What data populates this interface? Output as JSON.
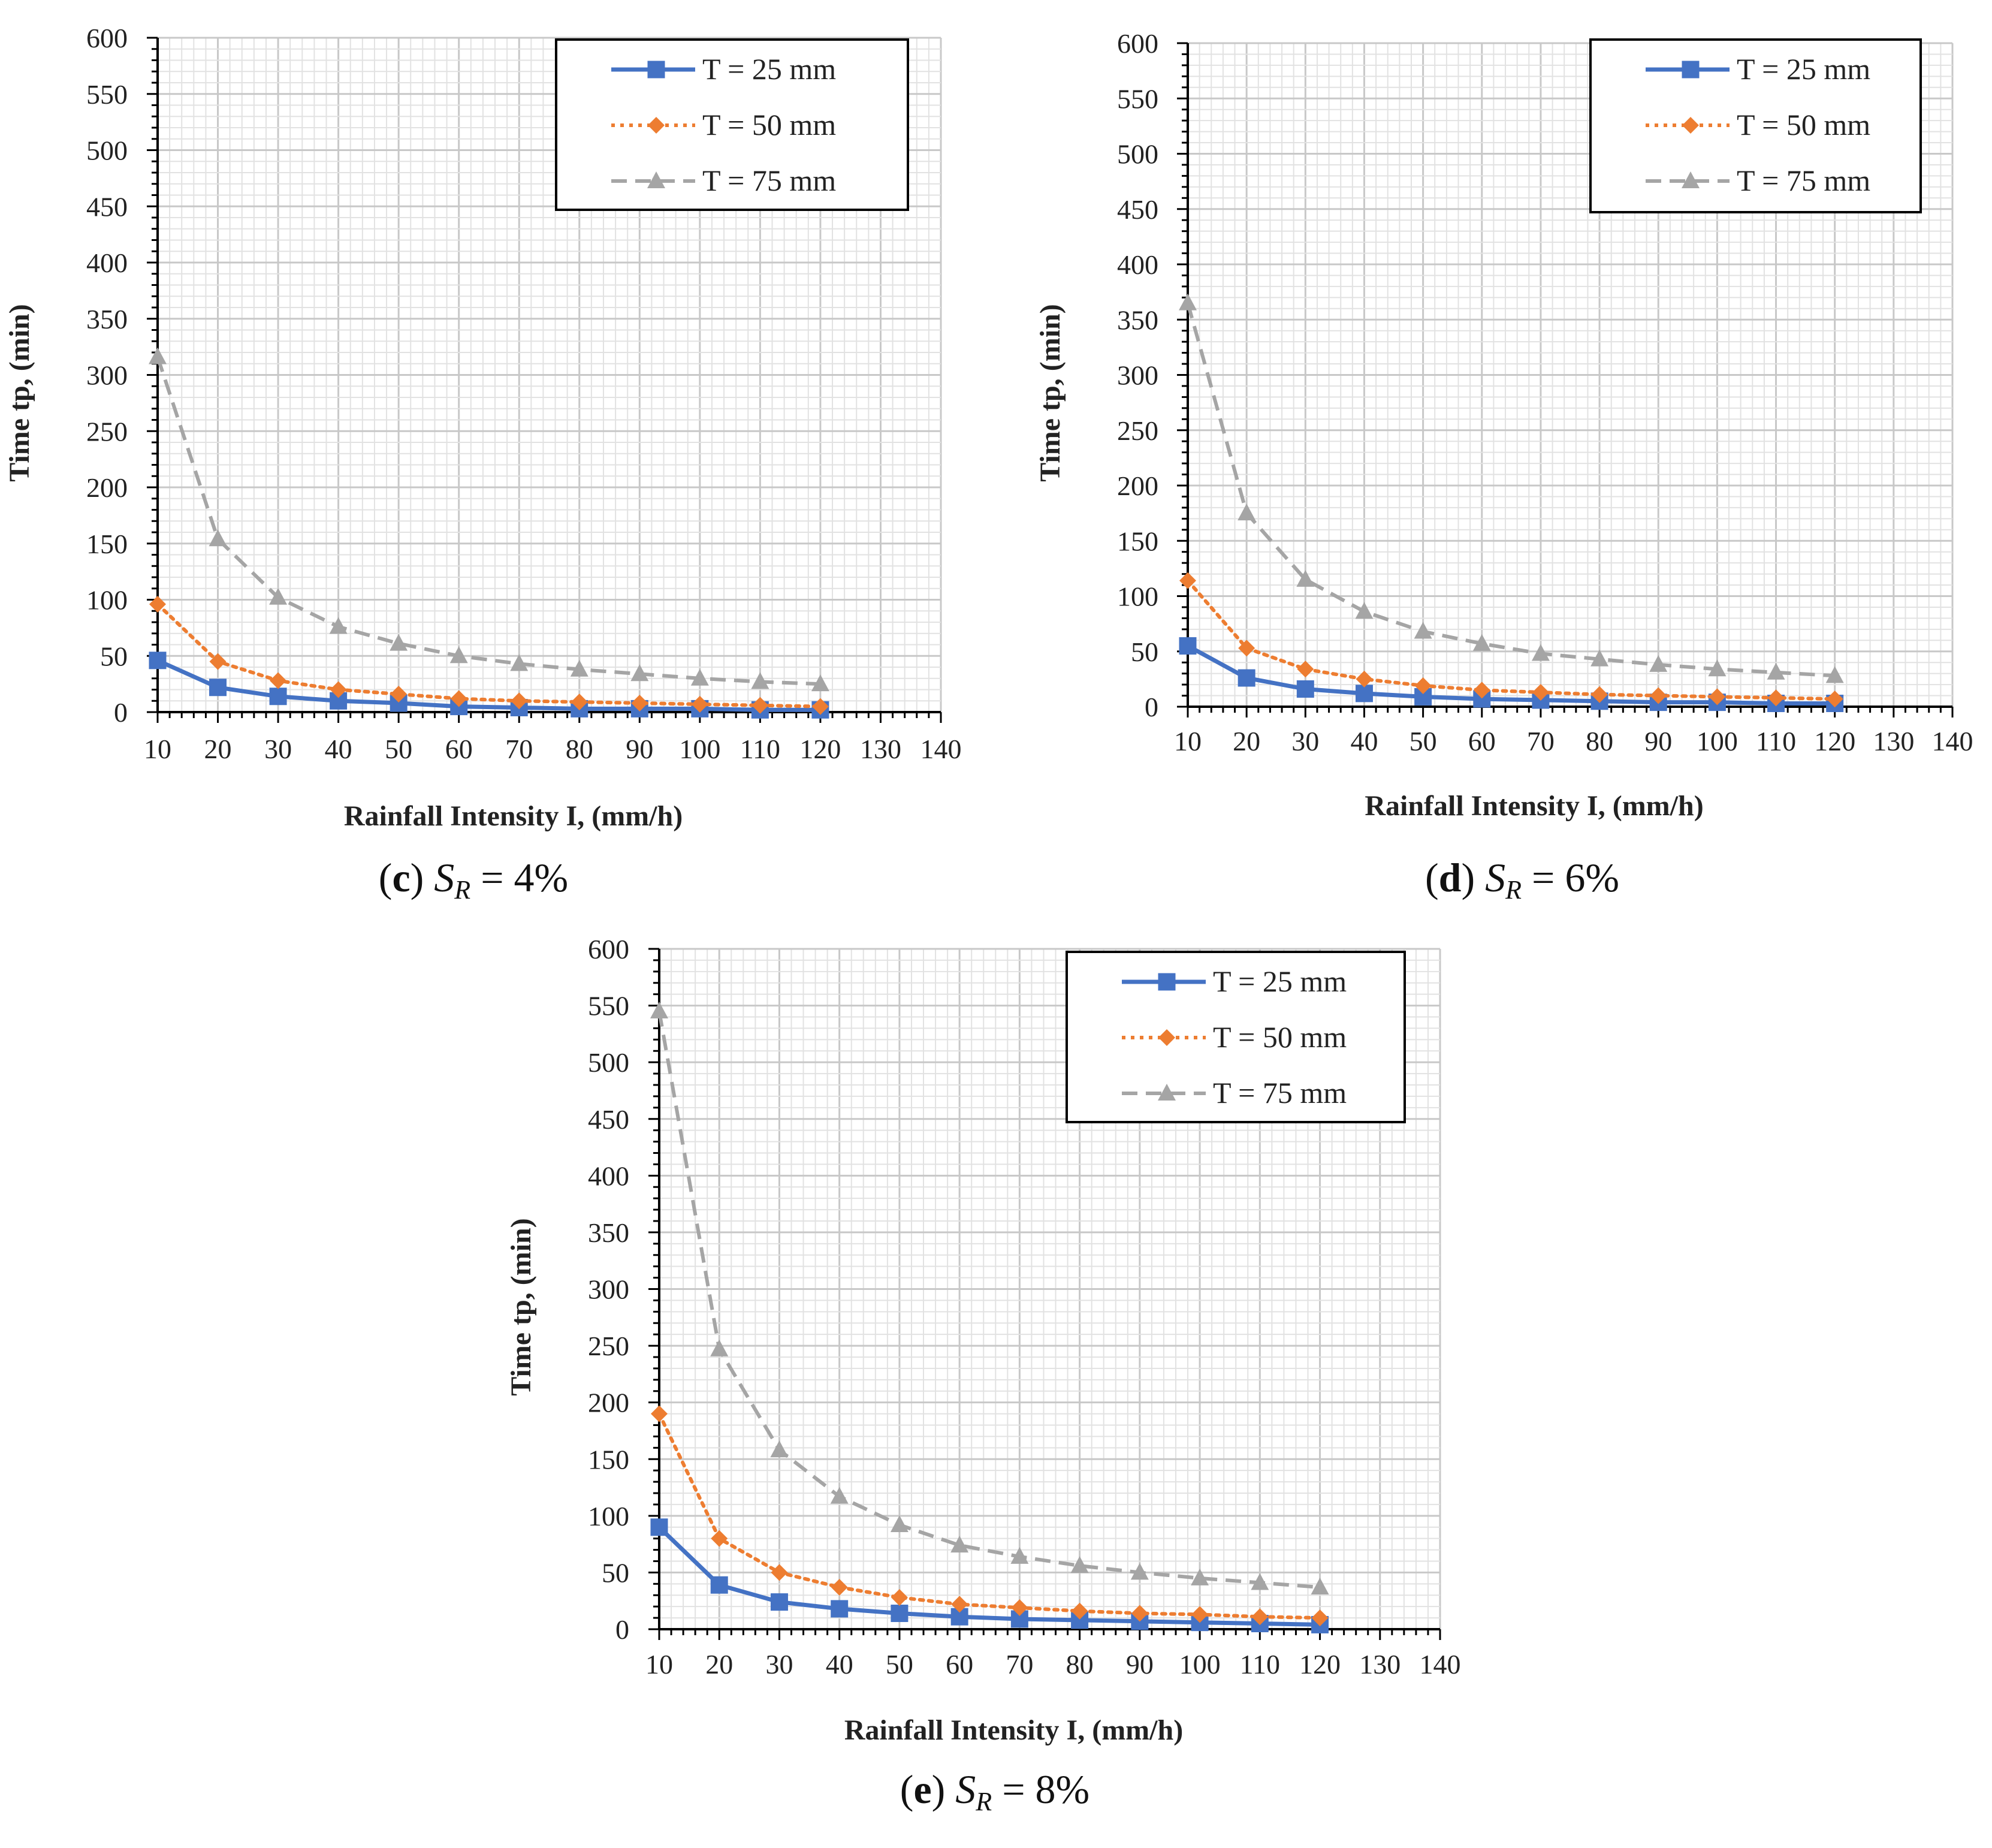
{
  "chart_data": [
    {
      "panel": "c",
      "type": "line",
      "caption": {
        "label": "(c)",
        "s": "S",
        "sub": "R",
        "rest": " = 4%"
      },
      "xlabel": "Rainfall Intensity I, (mm/h)",
      "ylabel": "Time tp, (min)",
      "xlim": [
        10,
        140
      ],
      "ylim": [
        0,
        600
      ],
      "x_ticks": [
        10,
        20,
        30,
        40,
        50,
        60,
        70,
        80,
        90,
        100,
        110,
        120,
        130,
        140
      ],
      "y_ticks": [
        0,
        50,
        100,
        150,
        200,
        250,
        300,
        350,
        400,
        450,
        500,
        550,
        600
      ],
      "grid": true,
      "legend_position": "top-right",
      "x": [
        10,
        20,
        30,
        40,
        50,
        60,
        70,
        80,
        90,
        100,
        110,
        120
      ],
      "series": [
        {
          "name": "T = 25 mm",
          "color": "#4472C4",
          "style": "solid",
          "marker": "square",
          "values": [
            46,
            22,
            14,
            10,
            8,
            5,
            4,
            3,
            3,
            3,
            2,
            2
          ]
        },
        {
          "name": "T = 50 mm",
          "color": "#ED7D31",
          "style": "dotted",
          "marker": "diamond",
          "values": [
            96,
            45,
            28,
            20,
            16,
            12,
            10,
            9,
            8,
            7,
            6,
            5
          ]
        },
        {
          "name": "T = 75 mm",
          "color": "#A5A5A5",
          "style": "dashed",
          "marker": "triangle",
          "values": [
            316,
            154,
            102,
            76,
            61,
            50,
            43,
            38,
            34,
            30,
            27,
            25
          ]
        }
      ]
    },
    {
      "panel": "d",
      "type": "line",
      "caption": {
        "label": "(d)",
        "s": "S",
        "sub": "R",
        "rest": " = 6%"
      },
      "xlabel": "Rainfall Intensity I, (mm/h)",
      "ylabel": "Time tp, (min)",
      "xlim": [
        10,
        140
      ],
      "ylim": [
        0,
        600
      ],
      "x_ticks": [
        10,
        20,
        30,
        40,
        50,
        60,
        70,
        80,
        90,
        100,
        110,
        120,
        130,
        140
      ],
      "y_ticks": [
        0,
        50,
        100,
        150,
        200,
        250,
        300,
        350,
        400,
        450,
        500,
        550,
        600
      ],
      "grid": true,
      "legend_position": "top-right",
      "x": [
        10,
        20,
        30,
        40,
        50,
        60,
        70,
        80,
        90,
        100,
        110,
        120
      ],
      "series": [
        {
          "name": "T = 25 mm",
          "color": "#4472C4",
          "style": "solid",
          "marker": "square",
          "values": [
            55,
            26,
            16,
            12,
            9,
            7,
            6,
            5,
            4,
            4,
            3,
            3
          ]
        },
        {
          "name": "T = 50 mm",
          "color": "#ED7D31",
          "style": "dotted",
          "marker": "diamond",
          "values": [
            114,
            53,
            34,
            25,
            19,
            15,
            13,
            11,
            10,
            9,
            8,
            7
          ]
        },
        {
          "name": "T = 75 mm",
          "color": "#A5A5A5",
          "style": "dashed",
          "marker": "triangle",
          "values": [
            365,
            175,
            115,
            86,
            68,
            57,
            48,
            43,
            38,
            34,
            31,
            28
          ]
        }
      ]
    },
    {
      "panel": "e",
      "type": "line",
      "caption": {
        "label": "(e)",
        "s": "S",
        "sub": "R",
        "rest": " = 8%"
      },
      "xlabel": "Rainfall Intensity I, (mm/h)",
      "ylabel": "Time tp, (min)",
      "xlim": [
        10,
        140
      ],
      "ylim": [
        0,
        600
      ],
      "x_ticks": [
        10,
        20,
        30,
        40,
        50,
        60,
        70,
        80,
        90,
        100,
        110,
        120,
        130,
        140
      ],
      "y_ticks": [
        0,
        50,
        100,
        150,
        200,
        250,
        300,
        350,
        400,
        450,
        500,
        550,
        600
      ],
      "grid": true,
      "legend_position": "top-right",
      "x": [
        10,
        20,
        30,
        40,
        50,
        60,
        70,
        80,
        90,
        100,
        110,
        120
      ],
      "series": [
        {
          "name": "T = 25 mm",
          "color": "#4472C4",
          "style": "solid",
          "marker": "square",
          "values": [
            90,
            39,
            24,
            18,
            14,
            11,
            9,
            8,
            7,
            6,
            5,
            4
          ]
        },
        {
          "name": "T = 50 mm",
          "color": "#ED7D31",
          "style": "dotted",
          "marker": "diamond",
          "values": [
            190,
            80,
            50,
            37,
            28,
            22,
            19,
            16,
            14,
            13,
            11,
            10
          ]
        },
        {
          "name": "T = 75 mm",
          "color": "#A5A5A5",
          "style": "dashed",
          "marker": "triangle",
          "values": [
            545,
            247,
            158,
            117,
            92,
            74,
            64,
            56,
            50,
            45,
            41,
            37
          ]
        }
      ]
    }
  ]
}
